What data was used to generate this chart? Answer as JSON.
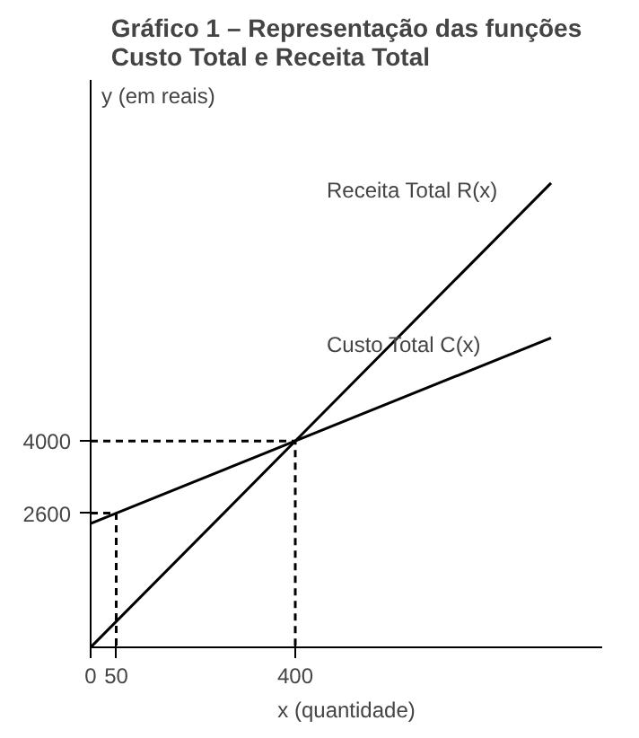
{
  "chart_data": {
    "type": "line",
    "title": "Gráfico 1 – Representação das funções\nCusto Total e Receita Total",
    "xlabel": "x (quantidade)",
    "ylabel": "y (em reais)",
    "xlim": [
      0,
      1000
    ],
    "ylim": [
      0,
      11000
    ],
    "xticks": [
      0,
      50,
      400
    ],
    "yticks": [
      2600,
      4000
    ],
    "grid": false,
    "marker": "none",
    "series": [
      {
        "name": "Receita Total R(x)",
        "color": "#000000",
        "x": [
          0,
          400,
          900
        ],
        "values": [
          0,
          4000,
          9000
        ]
      },
      {
        "name": "Custo Total C(x)",
        "color": "#000000",
        "x": [
          0,
          50,
          400,
          900
        ],
        "values": [
          2400,
          2600,
          4000,
          6000
        ]
      },
      {
        "color": "#000000",
        "line_style": "dashed",
        "x": [
          0,
          400,
          400
        ],
        "values": [
          4000,
          4000,
          0
        ]
      },
      {
        "color": "#000000",
        "line_style": "dashed",
        "x": [
          0,
          50,
          50
        ],
        "values": [
          2600,
          2600,
          0
        ]
      }
    ]
  }
}
